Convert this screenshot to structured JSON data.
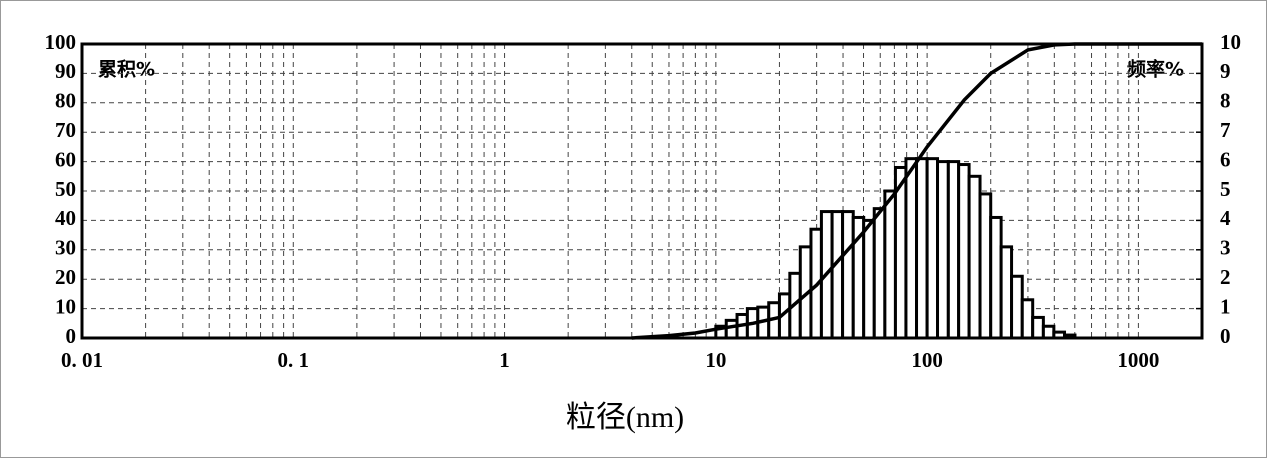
{
  "chart_data": {
    "type": "histogram",
    "xlabel": "粒径(nm)",
    "ylabel": "累积%",
    "y2label": "频率%",
    "xscale": "log",
    "xlim": [
      0.01,
      2000
    ],
    "xticks": [
      {
        "value": 0.01,
        "label": "0. 01"
      },
      {
        "value": 0.1,
        "label": "0. 1"
      },
      1,
      10,
      100,
      1000
    ],
    "x_minor_ticks": [
      0.02,
      0.03,
      0.04,
      0.05,
      0.06,
      0.07,
      0.08,
      0.09,
      0.2,
      0.3,
      0.4,
      0.5,
      0.6,
      0.7,
      0.8,
      0.9,
      2,
      3,
      4,
      5,
      6,
      7,
      8,
      9,
      20,
      30,
      40,
      50,
      60,
      70,
      80,
      90,
      200,
      300,
      400,
      500,
      600,
      700,
      800,
      900
    ],
    "ylim": [
      0,
      100
    ],
    "yticks": [
      0,
      10,
      20,
      30,
      40,
      50,
      60,
      70,
      80,
      90,
      100
    ],
    "y2lim": [
      0,
      10
    ],
    "y2ticks": [
      0,
      1,
      2,
      3,
      4,
      5,
      6,
      7,
      8,
      9,
      10
    ],
    "grid": true,
    "color": "#000000",
    "bins": [
      10,
      11.2,
      12.6,
      14.1,
      15.8,
      17.8,
      20,
      22.4,
      25.1,
      28.2,
      31.6,
      35.5,
      39.8,
      44.7,
      50.1,
      56.2,
      63.1,
      70.8,
      79.4,
      89.1,
      100,
      112,
      126,
      141,
      158,
      178,
      200,
      224,
      251,
      282,
      316,
      355,
      398,
      447,
      501
    ],
    "values": [
      0.4,
      0.6,
      0.8,
      1.0,
      1.05,
      1.2,
      1.5,
      2.2,
      3.1,
      3.7,
      4.3,
      4.3,
      4.3,
      4.1,
      4.0,
      4.4,
      5.0,
      5.8,
      6.1,
      6.1,
      6.1,
      6.0,
      6.0,
      5.9,
      5.5,
      4.9,
      4.1,
      3.1,
      2.1,
      1.3,
      0.7,
      0.4,
      0.2,
      0.1
    ],
    "axis": "y2",
    "line": {
      "x": [
        4,
        6,
        8,
        10,
        15,
        20,
        30,
        50,
        70,
        100,
        150,
        200,
        300,
        400,
        500,
        2000
      ],
      "values": [
        0,
        0.8,
        1.7,
        3,
        5,
        7,
        18,
        36,
        49,
        65,
        81,
        90,
        98,
        99.7,
        100,
        100
      ]
    }
  }
}
